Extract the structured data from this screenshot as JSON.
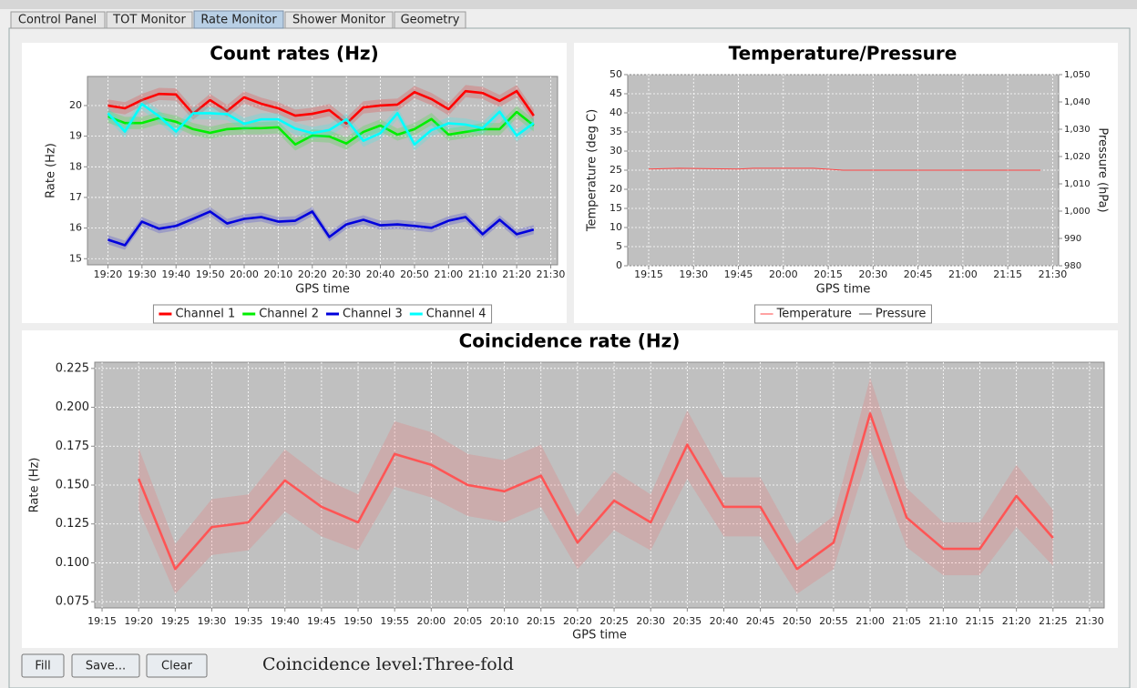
{
  "tabs": [
    "Control Panel",
    "TOT Monitor",
    "Rate Monitor",
    "Shower Monitor",
    "Geometry"
  ],
  "buttons": [
    "Fill",
    "Save...",
    "Clear"
  ],
  "coincidence_level": "Coincidence level:Three-fold",
  "chart_data": [
    {
      "type": "line",
      "title": "Count rates (Hz)",
      "x_label": "GPS time",
      "y_label": "Rate (Hz)",
      "x": [
        "19:20",
        "19:25",
        "19:30",
        "19:35",
        "19:40",
        "19:45",
        "19:50",
        "19:55",
        "20:00",
        "20:05",
        "20:10",
        "20:15",
        "20:20",
        "20:25",
        "20:30",
        "20:35",
        "20:40",
        "20:45",
        "20:50",
        "20:55",
        "21:00",
        "21:05",
        "21:10",
        "21:15",
        "21:20",
        "21:25"
      ],
      "xlim": [
        "19:14",
        "21:32"
      ],
      "xticks": [
        "19:20",
        "19:30",
        "19:40",
        "19:50",
        "20:00",
        "20:10",
        "20:20",
        "20:30",
        "20:40",
        "20:50",
        "21:00",
        "21:10",
        "21:20",
        "21:30"
      ],
      "ylim": [
        14.8,
        20.95
      ],
      "yticks": [
        15,
        16,
        17,
        18,
        19,
        20
      ],
      "grid": true,
      "legend": "bottom",
      "series": [
        {
          "name": "Channel 1",
          "color": "#ff0000",
          "error": 0.2,
          "values": [
            20,
            19.91,
            20.18,
            20.38,
            20.36,
            19.73,
            20.18,
            19.82,
            20.27,
            20.06,
            19.91,
            19.67,
            19.73,
            19.85,
            19.41,
            19.94,
            20,
            20.03,
            20.44,
            20.21,
            19.88,
            20.47,
            20.41,
            20.15,
            20.47,
            19.67
          ]
        },
        {
          "name": "Channel 2",
          "color": "#00ee00",
          "error": 0.2,
          "values": [
            19.64,
            19.43,
            19.43,
            19.59,
            19.47,
            19.23,
            19.11,
            19.23,
            19.26,
            19.26,
            19.29,
            18.73,
            19.02,
            18.99,
            18.76,
            19.14,
            19.35,
            19.05,
            19.23,
            19.56,
            19.05,
            19.14,
            19.23,
            19.23,
            19.79,
            19.35
          ]
        },
        {
          "name": "Channel 3",
          "color": "#0000dd",
          "error": 0.15,
          "values": [
            15.62,
            15.44,
            16.21,
            15.98,
            16.07,
            16.3,
            16.54,
            16.15,
            16.3,
            16.36,
            16.21,
            16.24,
            16.54,
            15.71,
            16.12,
            16.27,
            16.09,
            16.12,
            16.07,
            16.01,
            16.24,
            16.36,
            15.8,
            16.27,
            15.8,
            15.95
          ]
        },
        {
          "name": "Channel 4",
          "color": "#00ffff",
          "error": 0.2,
          "values": [
            19.75,
            19.15,
            20.05,
            19.65,
            19.15,
            19.75,
            19.75,
            19.72,
            19.4,
            19.55,
            19.55,
            19.25,
            19.1,
            19.2,
            19.55,
            18.85,
            19.1,
            19.75,
            18.73,
            19.2,
            19.42,
            19.38,
            19.26,
            19.8,
            19.02,
            19.43
          ]
        }
      ]
    },
    {
      "type": "line",
      "title": "Temperature/Pressure",
      "x_label": "GPS time",
      "y_label": "Temperature (deg C)",
      "y2_label": "Pressure (hPa)",
      "x": [
        "19:15",
        "19:25",
        "19:45",
        "19:50",
        "20:10",
        "20:20",
        "21:26"
      ],
      "xlim": [
        "19:08",
        "21:32"
      ],
      "xticks": [
        "19:15",
        "19:30",
        "19:45",
        "20:00",
        "20:15",
        "20:30",
        "20:45",
        "21:00",
        "21:15",
        "21:30"
      ],
      "ylim": [
        0,
        50
      ],
      "yticks": [
        0,
        5,
        10,
        15,
        20,
        25,
        30,
        35,
        40,
        45,
        50
      ],
      "y2lim": [
        980,
        1050
      ],
      "y2ticks": [
        980,
        990,
        {
          "value": 1000,
          "label": "1,000"
        },
        {
          "value": 1010,
          "label": "1,010"
        },
        {
          "value": 1020,
          "label": "1,020"
        },
        {
          "value": 1030,
          "label": "1,030"
        },
        {
          "value": 1040,
          "label": "1,040"
        },
        {
          "value": 1050,
          "label": "1,050"
        }
      ],
      "grid": true,
      "legend": "bottom",
      "series": [
        {
          "name": "Temperature",
          "color": "#ff4444",
          "values": [
            25.3,
            25.5,
            25.3,
            25.5,
            25.5,
            25,
            25
          ]
        },
        {
          "name": "Pressure",
          "color": "#555555",
          "axis": "y2",
          "values": [
            null,
            null,
            null,
            null,
            null,
            null,
            null
          ]
        }
      ]
    },
    {
      "type": "line",
      "title": "Coincidence rate (Hz)",
      "x_label": "GPS time",
      "y_label": "Rate (Hz)",
      "x": [
        "19:20",
        "19:25",
        "19:30",
        "19:35",
        "19:40",
        "19:45",
        "19:50",
        "19:55",
        "20:00",
        "20:05",
        "20:10",
        "20:15",
        "20:20",
        "20:25",
        "20:30",
        "20:35",
        "20:40",
        "20:45",
        "20:50",
        "20:55",
        "21:00",
        "21:05",
        "21:10",
        "21:15",
        "21:20",
        "21:25"
      ],
      "xlim": [
        "19:14",
        "21:32"
      ],
      "xticks": [
        "19:15",
        "19:20",
        "19:25",
        "19:30",
        "19:35",
        "19:40",
        "19:45",
        "19:50",
        "19:55",
        "20:00",
        "20:05",
        "20:10",
        "20:15",
        "20:20",
        "20:25",
        "20:30",
        "20:35",
        "20:40",
        "20:45",
        "20:50",
        "20:55",
        "21:00",
        "21:05",
        "21:10",
        "21:15",
        "21:20",
        "21:25",
        "21:30"
      ],
      "ylim": [
        0.071,
        0.229
      ],
      "yticks": [
        0.075,
        {
          "value": 0.1,
          "label": "0.100"
        },
        {
          "value": 0.125,
          "label": "0.125"
        },
        {
          "value": 0.15,
          "label": "0.150"
        },
        0.175,
        {
          "value": 0.2,
          "label": "0.200"
        },
        0.225
      ],
      "grid": true,
      "series": [
        {
          "color": "#ff5555",
          "values": [
            0.154,
            0.096,
            0.123,
            0.126,
            0.153,
            0.136,
            0.126,
            0.17,
            0.163,
            0.15,
            0.146,
            0.156,
            0.113,
            0.14,
            0.126,
            0.176,
            0.136,
            0.136,
            0.096,
            0.113,
            0.196,
            0.129,
            0.109,
            0.109,
            0.143,
            0.116
          ],
          "errors": [
            0.02,
            0.016,
            0.018,
            0.018,
            0.02,
            0.019,
            0.018,
            0.021,
            0.021,
            0.02,
            0.02,
            0.02,
            0.017,
            0.019,
            0.018,
            0.022,
            0.019,
            0.019,
            0.016,
            0.017,
            0.023,
            0.019,
            0.017,
            0.017,
            0.02,
            0.018
          ]
        }
      ]
    }
  ]
}
